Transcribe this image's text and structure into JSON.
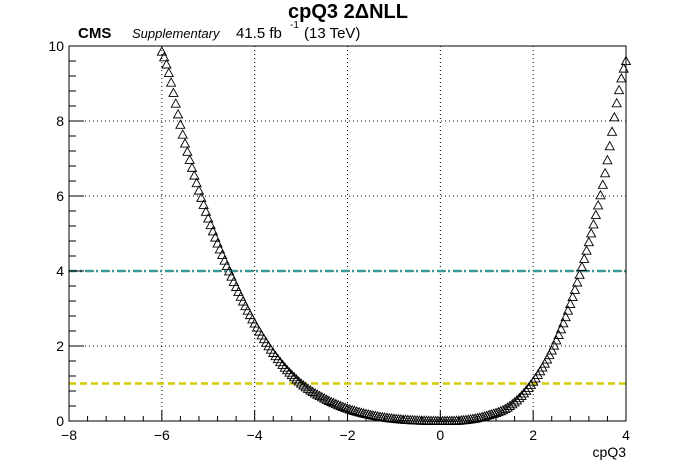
{
  "chart_data": {
    "type": "scatter",
    "title": "cpQ3 2ΔNLL",
    "header": {
      "experiment": "CMS",
      "tag": "Supplementary",
      "lumi_value": "41.5 fb",
      "lumi_exp": "-1",
      "energy": "(13 TeV)"
    },
    "xlabel": "cpQ3",
    "ylabel": "",
    "xlim": [
      -8,
      4
    ],
    "ylim": [
      0,
      10
    ],
    "x_ticks": [
      "−8",
      "−6",
      "−4",
      "−2",
      "0",
      "2",
      "4"
    ],
    "y_ticks": [
      "0",
      "2",
      "4",
      "6",
      "8",
      "10"
    ],
    "grid": true,
    "marker": "open-triangle",
    "series": [
      {
        "x": [
          -6.0,
          -5.5,
          -5.0,
          -4.5,
          -4.0,
          -3.5,
          -3.0,
          -2.5,
          -2.0,
          -1.5,
          -1.0,
          -0.5,
          0.0,
          0.5,
          1.0,
          1.5,
          2.0,
          2.5,
          3.0,
          3.5,
          4.0
        ],
        "y": [
          9.85,
          7.4,
          5.4,
          3.85,
          2.6,
          1.65,
          1.0,
          0.6,
          0.33,
          0.16,
          0.06,
          0.015,
          0.0,
          0.02,
          0.14,
          0.4,
          1.05,
          2.15,
          3.9,
          6.3,
          9.6
        ]
      }
    ],
    "reference_lines": [
      {
        "y": 4,
        "color": "#3a9a9a",
        "style": "dash-dot"
      },
      {
        "y": 1,
        "color": "#d4cc00",
        "style": "dashed"
      }
    ]
  }
}
